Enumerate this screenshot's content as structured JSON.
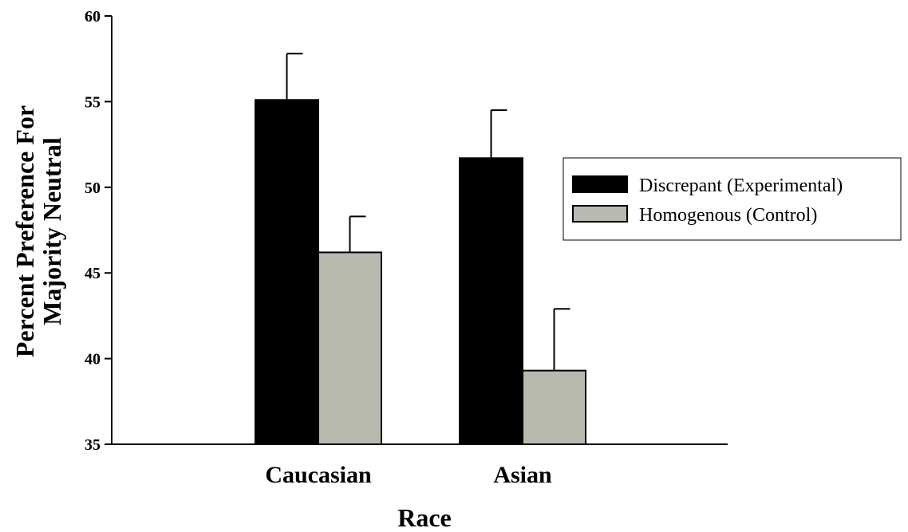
{
  "chart_data": {
    "type": "bar",
    "categories": [
      "Caucasian",
      "Asian"
    ],
    "series": [
      {
        "name": "Discrepant (Experimental)",
        "color": "#000000",
        "values": [
          55.1,
          51.7
        ],
        "errors": [
          2.7,
          2.8
        ]
      },
      {
        "name": "Homogenous (Control)",
        "color": "#b9b9ae",
        "values": [
          46.2,
          39.3
        ],
        "errors": [
          2.1,
          3.6
        ]
      }
    ],
    "xlabel": "Race",
    "ylabel_lines": [
      "Percent Preference For",
      "Majority Neutral"
    ],
    "ylim": [
      35,
      60
    ],
    "yticks": [
      35,
      40,
      45,
      50,
      55,
      60
    ],
    "grid": false,
    "legend_position": "right"
  }
}
